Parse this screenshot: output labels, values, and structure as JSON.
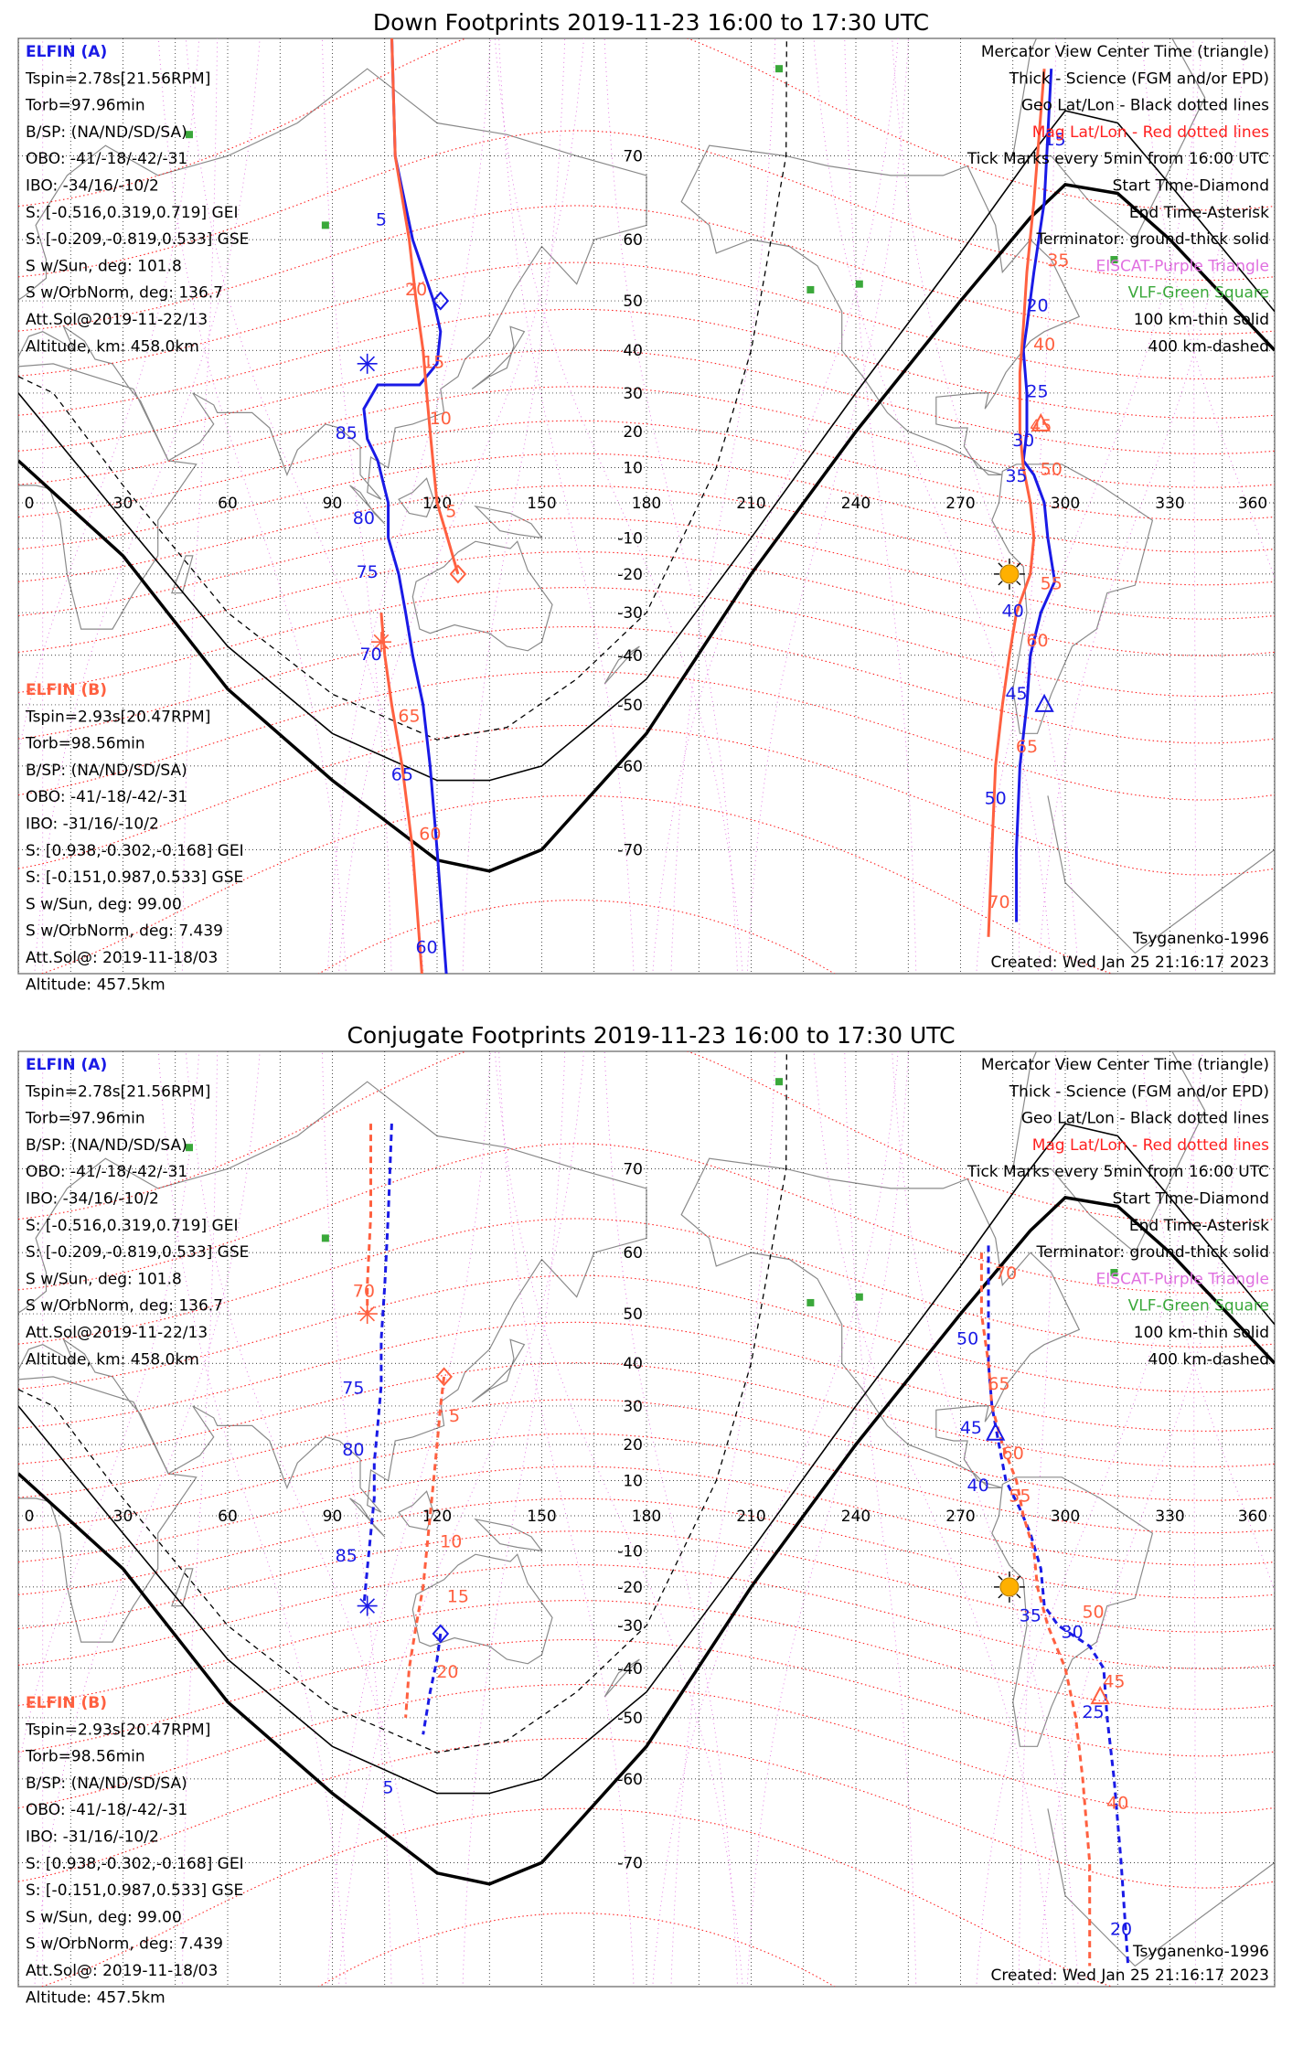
{
  "colors": {
    "elfin_a": "#1a1ae6",
    "elfin_b": "#ff6040",
    "mag_grid": "#ff2020",
    "geo_grid": "#000000",
    "eiscat": "#e070e0",
    "vlf": "#3aa83a",
    "sun": "#ffb000"
  },
  "legend": {
    "elfin_a_title": "ELFIN (A)",
    "elfin_a_lines": [
      "Tspin=2.78s[21.56RPM]",
      "Torb=97.96min",
      "B/SP: (NA/ND/SD/SA)",
      "OBO: -41/-18/-42/-31",
      "IBO: -34/16/-10/2",
      "S: [-0.516,0.319,0.719] GEI",
      "S: [-0.209,-0.819,0.533] GSE",
      "S w/Sun, deg: 101.8",
      "S w/OrbNorm, deg: 136.7",
      "Att.Sol@2019-11-22/13",
      "Altitude, km: 458.0km"
    ],
    "elfin_b_title": "ELFIN (B)",
    "elfin_b_lines": [
      "Tspin=2.93s[20.47RPM]",
      "Torb=98.56min",
      "B/SP: (NA/ND/SD/SA)",
      "OBO: -41/-18/-42/-31",
      "IBO: -31/16/-10/2",
      "S: [0.938,-0.302,-0.168] GEI",
      "S: [-0.151,0.987,0.533] GSE",
      "S w/Sun, deg: 99.00",
      "S w/OrbNorm, deg: 7.439",
      "Att.Sol@: 2019-11-18/03",
      "Altitude: 457.5km"
    ],
    "right_lines": [
      "Mercator View Center Time (triangle)",
      "Thick - Science (FGM and/or EPD)",
      "Geo Lat/Lon - Black dotted lines",
      "Mag Lat/Lon - Red dotted lines",
      "Tick Marks every 5min from 16:00 UTC",
      "Start Time-Diamond",
      "End Time-Asterisk",
      "Terminator: ground-thick solid",
      "EISCAT-Purple Triangle",
      "VLF-Green Square",
      "100 km-thin solid",
      "400 km-dashed"
    ],
    "model": "Tsyganenko-1996",
    "created": "Created: Wed Jan 25 21:16:17 2023"
  },
  "axes": {
    "lon_labels": [
      "0",
      "30",
      "60",
      "90",
      "120",
      "150",
      "180",
      "210",
      "240",
      "270",
      "300",
      "330",
      "360"
    ],
    "lat_labels": [
      "70",
      "60",
      "50",
      "40",
      "30",
      "20",
      "10",
      "-10",
      "-20",
      "-30",
      "-40",
      "-50",
      "-60",
      "-70"
    ]
  },
  "panels": [
    {
      "title": "Down Footprints 2019-11-23 16:00 to 17:30 UTC",
      "style": "solid",
      "tracks": [
        {
          "sat": "A",
          "group": 1,
          "lonlat": [
            [
              107,
              79
            ],
            [
              108,
              70
            ],
            [
              113,
              60
            ],
            [
              119,
              50
            ],
            [
              121,
              44
            ],
            [
              120,
              37
            ],
            [
              115,
              32
            ],
            [
              103,
              32
            ],
            [
              99,
              26
            ],
            [
              100,
              18
            ],
            [
              103,
              12
            ],
            [
              106,
              0
            ],
            [
              106,
              -10
            ],
            [
              109,
              -20
            ],
            [
              111,
              -30
            ],
            [
              113,
              -40
            ],
            [
              116,
              -50
            ],
            [
              118,
              -60
            ],
            [
              120,
              -70
            ],
            [
              123,
              -80
            ]
          ]
        },
        {
          "sat": "B",
          "group": 1,
          "lonlat": [
            [
              107,
              79
            ],
            [
              108,
              70
            ],
            [
              112,
              60
            ],
            [
              114,
              50
            ],
            [
              116,
              40
            ],
            [
              117,
              30
            ],
            [
              118,
              20
            ],
            [
              119,
              10
            ],
            [
              120,
              0
            ],
            [
              123,
              -10
            ],
            [
              126,
              -20
            ]
          ]
        },
        {
          "sat": "B",
          "group": 2,
          "lonlat": [
            [
              104,
              -30
            ],
            [
              105,
              -40
            ],
            [
              107,
              -50
            ],
            [
              110,
              -60
            ],
            [
              113,
              -70
            ],
            [
              116,
              -80
            ]
          ]
        },
        {
          "sat": "A",
          "group": 3,
          "lonlat": [
            [
              296,
              77
            ],
            [
              294,
              65
            ],
            [
              291,
              55
            ],
            [
              289,
              45
            ],
            [
              288,
              40
            ],
            [
              289,
              30
            ],
            [
              289,
              20
            ],
            [
              288,
              12
            ],
            [
              291,
              8
            ],
            [
              294,
              0
            ],
            [
              295,
              -10
            ],
            [
              297,
              -22
            ],
            [
              293,
              -30
            ],
            [
              290,
              -40
            ],
            [
              289,
              -50
            ],
            [
              287,
              -60
            ],
            [
              286,
              -70
            ],
            [
              286,
              -76
            ]
          ]
        },
        {
          "sat": "B",
          "group": 3,
          "lonlat": [
            [
              294,
              77
            ],
            [
              291,
              65
            ],
            [
              289,
              55
            ],
            [
              288,
              45
            ],
            [
              287,
              35
            ],
            [
              287,
              20
            ],
            [
              288,
              10
            ],
            [
              290,
              0
            ],
            [
              291,
              -10
            ],
            [
              290,
              -20
            ],
            [
              286,
              -30
            ],
            [
              284,
              -40
            ],
            [
              282,
              -50
            ],
            [
              280,
              -60
            ],
            [
              279,
              -70
            ],
            [
              278,
              -77
            ]
          ]
        }
      ],
      "tick_labels": [
        {
          "sat": "A",
          "text": "5",
          "lon": 104,
          "lat": 62
        },
        {
          "sat": "B",
          "text": "20",
          "lon": 114,
          "lat": 51
        },
        {
          "sat": "B",
          "text": "15",
          "lon": 119,
          "lat": 36
        },
        {
          "sat": "B",
          "text": "10",
          "lon": 121,
          "lat": 22
        },
        {
          "sat": "B",
          "text": "5",
          "lon": 124,
          "lat": -4
        },
        {
          "sat": "A",
          "text": "85",
          "lon": 94,
          "lat": 18
        },
        {
          "sat": "A",
          "text": "80",
          "lon": 99,
          "lat": -6
        },
        {
          "sat": "A",
          "text": "75",
          "lon": 100,
          "lat": -21
        },
        {
          "sat": "A",
          "text": "70",
          "lon": 101,
          "lat": -41
        },
        {
          "sat": "B",
          "text": "65",
          "lon": 112,
          "lat": -53
        },
        {
          "sat": "A",
          "text": "65",
          "lon": 110,
          "lat": -62
        },
        {
          "sat": "B",
          "text": "60",
          "lon": 118,
          "lat": -69
        },
        {
          "sat": "A",
          "text": "60",
          "lon": 117,
          "lat": -78
        },
        {
          "sat": "A",
          "text": "15",
          "lon": 297,
          "lat": 71
        },
        {
          "sat": "B",
          "text": "35",
          "lon": 298,
          "lat": 56
        },
        {
          "sat": "A",
          "text": "20",
          "lon": 292,
          "lat": 48
        },
        {
          "sat": "B",
          "text": "40",
          "lon": 294,
          "lat": 40
        },
        {
          "sat": "A",
          "text": "25",
          "lon": 292,
          "lat": 29
        },
        {
          "sat": "B",
          "text": "45",
          "lon": 293,
          "lat": 20
        },
        {
          "sat": "A",
          "text": "30",
          "lon": 288,
          "lat": 16
        },
        {
          "sat": "A",
          "text": "35",
          "lon": 286,
          "lat": 6
        },
        {
          "sat": "B",
          "text": "50",
          "lon": 296,
          "lat": 8
        },
        {
          "sat": "B",
          "text": "55",
          "lon": 296,
          "lat": -24
        },
        {
          "sat": "A",
          "text": "40",
          "lon": 285,
          "lat": -31
        },
        {
          "sat": "B",
          "text": "60",
          "lon": 292,
          "lat": -38
        },
        {
          "sat": "A",
          "text": "45",
          "lon": 286,
          "lat": -49
        },
        {
          "sat": "B",
          "text": "65",
          "lon": 289,
          "lat": -58
        },
        {
          "sat": "A",
          "text": "50",
          "lon": 280,
          "lat": -65
        },
        {
          "sat": "B",
          "text": "70",
          "lon": 281,
          "lat": -75
        }
      ],
      "markers": [
        {
          "kind": "diamond",
          "sat": "A",
          "lon": 121,
          "lat": 50
        },
        {
          "kind": "diamond",
          "sat": "B",
          "lon": 126,
          "lat": -20
        },
        {
          "kind": "asterisk",
          "sat": "A",
          "lon": 100,
          "lat": 37
        },
        {
          "kind": "asterisk",
          "sat": "B",
          "lon": 104,
          "lat": -37
        },
        {
          "kind": "triangle",
          "sat": "A",
          "lon": 294,
          "lat": -50
        },
        {
          "kind": "triangle",
          "sat": "B",
          "lon": 293,
          "lat": 22
        }
      ],
      "sun": {
        "lon": 284,
        "lat": -20
      }
    },
    {
      "title": "Conjugate Footprints 2019-11-23 16:00 to 17:30 UTC",
      "style": "dashed",
      "tracks": [
        {
          "sat": "A",
          "group": 1,
          "lonlat": [
            [
              107,
              74
            ],
            [
              106,
              65
            ],
            [
              105,
              55
            ],
            [
              104,
              45
            ],
            [
              104,
              35
            ],
            [
              103,
              25
            ],
            [
              102,
              15
            ],
            [
              102,
              5
            ],
            [
              101,
              -5
            ],
            [
              100,
              -15
            ],
            [
              99,
              -25
            ]
          ]
        },
        {
          "sat": "B",
          "group": 1,
          "lonlat": [
            [
              101,
              74
            ],
            [
              101,
              65
            ],
            [
              100,
              55
            ],
            [
              100,
              50
            ]
          ]
        },
        {
          "sat": "A",
          "group": 2,
          "lonlat": [
            [
              121,
              -32
            ],
            [
              120,
              -38
            ],
            [
              118,
              -45
            ],
            [
              116,
              -53
            ]
          ]
        },
        {
          "sat": "B",
          "group": 2,
          "lonlat": [
            [
              122,
              37
            ],
            [
              121,
              30
            ],
            [
              120,
              20
            ],
            [
              119,
              10
            ],
            [
              118,
              0
            ],
            [
              117,
              -10
            ],
            [
              116,
              -20
            ],
            [
              114,
              -30
            ],
            [
              112,
              -40
            ],
            [
              111,
              -50
            ]
          ]
        },
        {
          "sat": "A",
          "group": 3,
          "lonlat": [
            [
              278,
              61
            ],
            [
              278,
              50
            ],
            [
              278,
              40
            ],
            [
              279,
              30
            ],
            [
              281,
              20
            ],
            [
              283,
              10
            ],
            [
              287,
              2
            ],
            [
              290,
              -5
            ],
            [
              293,
              -15
            ],
            [
              294,
              -25
            ],
            [
              298,
              -30
            ],
            [
              307,
              -35
            ],
            [
              311,
              -40
            ],
            [
              312,
              -50
            ],
            [
              314,
              -60
            ],
            [
              316,
              -70
            ],
            [
              318,
              -78
            ]
          ]
        },
        {
          "sat": "B",
          "group": 3,
          "lonlat": [
            [
              276,
              60
            ],
            [
              276,
              50
            ],
            [
              278,
              40
            ],
            [
              279,
              30
            ],
            [
              282,
              20
            ],
            [
              286,
              10
            ],
            [
              288,
              0
            ],
            [
              291,
              -10
            ],
            [
              292,
              -20
            ],
            [
              295,
              -30
            ],
            [
              300,
              -40
            ],
            [
              303,
              -50
            ],
            [
              305,
              -60
            ],
            [
              307,
              -70
            ],
            [
              307,
              -78
            ]
          ]
        }
      ],
      "tick_labels": [
        {
          "sat": "B",
          "text": "70",
          "lon": 99,
          "lat": 53
        },
        {
          "sat": "A",
          "text": "75",
          "lon": 96,
          "lat": 33
        },
        {
          "sat": "B",
          "text": "5",
          "lon": 125,
          "lat": 26
        },
        {
          "sat": "A",
          "text": "80",
          "lon": 96,
          "lat": 17
        },
        {
          "sat": "B",
          "text": "10",
          "lon": 124,
          "lat": -9
        },
        {
          "sat": "A",
          "text": "85",
          "lon": 94,
          "lat": -13
        },
        {
          "sat": "B",
          "text": "15",
          "lon": 126,
          "lat": -24
        },
        {
          "sat": "B",
          "text": "20",
          "lon": 123,
          "lat": -42
        },
        {
          "sat": "A",
          "text": "5",
          "lon": 106,
          "lat": -62
        },
        {
          "sat": "B",
          "text": "70",
          "lon": 283,
          "lat": 56
        },
        {
          "sat": "A",
          "text": "50",
          "lon": 272,
          "lat": 44
        },
        {
          "sat": "B",
          "text": "65",
          "lon": 281,
          "lat": 34
        },
        {
          "sat": "A",
          "text": "45",
          "lon": 273,
          "lat": 23
        },
        {
          "sat": "B",
          "text": "60",
          "lon": 285,
          "lat": 16
        },
        {
          "sat": "A",
          "text": "40",
          "lon": 275,
          "lat": 7
        },
        {
          "sat": "B",
          "text": "55",
          "lon": 287,
          "lat": 4
        },
        {
          "sat": "A",
          "text": "35",
          "lon": 290,
          "lat": -29
        },
        {
          "sat": "A",
          "text": "30",
          "lon": 302,
          "lat": -33
        },
        {
          "sat": "B",
          "text": "50",
          "lon": 308,
          "lat": -28
        },
        {
          "sat": "B",
          "text": "45",
          "lon": 314,
          "lat": -44
        },
        {
          "sat": "A",
          "text": "25",
          "lon": 308,
          "lat": -50
        },
        {
          "sat": "B",
          "text": "40",
          "lon": 315,
          "lat": -64
        },
        {
          "sat": "A",
          "text": "20",
          "lon": 316,
          "lat": -76
        }
      ],
      "markers": [
        {
          "kind": "diamond",
          "sat": "A",
          "lon": 121,
          "lat": -32
        },
        {
          "kind": "diamond",
          "sat": "B",
          "lon": 122,
          "lat": 37
        },
        {
          "kind": "asterisk",
          "sat": "A",
          "lon": 100,
          "lat": -25
        },
        {
          "kind": "asterisk",
          "sat": "B",
          "lon": 100,
          "lat": 50
        },
        {
          "kind": "triangle",
          "sat": "A",
          "lon": 280,
          "lat": 23
        },
        {
          "kind": "triangle",
          "sat": "B",
          "lon": 310,
          "lat": -46
        }
      ],
      "sun": {
        "lon": 284,
        "lat": -20
      }
    }
  ]
}
